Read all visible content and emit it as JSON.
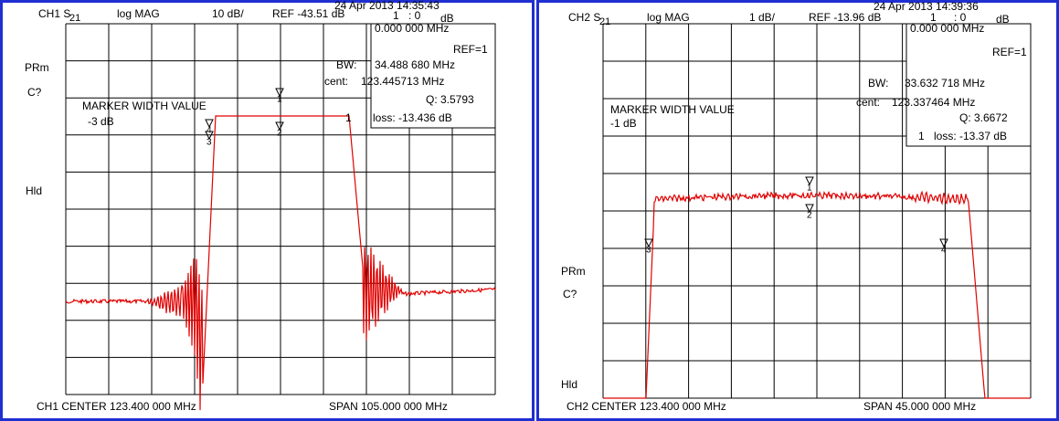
{
  "panels": [
    {
      "channel": "CH1 S",
      "param": "21",
      "format": "log MAG",
      "scale": "10 dB/",
      "ref": "REF -43.51 dB",
      "timestamp": "24 Apr 2013 14:35:43",
      "marker": "1",
      "marker_value": ": 0",
      "marker_unit": "dB",
      "freq": "0.000 000 MHz",
      "ref_marker": "REF=1",
      "bw_label": "BW:",
      "bw": "34.488 680 MHz",
      "cent_label": "cent:",
      "cent": "123.445713 MHz",
      "q": "Q: 3.5793",
      "loss_marker": "1",
      "loss": "loss: -13.436 dB",
      "marker_title": "MARKER WIDTH VALUE",
      "width_value": "-3 dB",
      "labels": [
        "PRm",
        "C?",
        "Hld"
      ],
      "center": "CH1 CENTER 123.400 000 MHz",
      "span": "SPAN 105.000 000 MHz",
      "markers": [
        "1",
        "2",
        "3",
        "4"
      ]
    },
    {
      "channel": "CH2 S",
      "param": "21",
      "format": "log MAG",
      "scale": "1 dB/",
      "ref": "REF -13.96 dB",
      "timestamp": "24 Apr 2013 14:39:36",
      "marker": "1",
      "marker_value": ": 0",
      "marker_unit": "dB",
      "freq": "0.000 000 MHz",
      "ref_marker": "REF=1",
      "bw_label": "BW:",
      "bw": "33.632 718 MHz",
      "cent_label": "cent:",
      "cent": "123.337464 MHz",
      "q": "Q: 3.6672",
      "loss_marker": "1",
      "loss": "loss: -13.37 dB",
      "marker_title": "MARKER WIDTH VALUE",
      "width_value": "-1 dB",
      "labels": [
        "PRm",
        "C?",
        "Hld"
      ],
      "center": "CH2 CENTER 123.400 000 MHz",
      "span": "SPAN 45.000 000 MHz",
      "markers": [
        "1",
        "2",
        "3",
        "4"
      ]
    }
  ]
}
